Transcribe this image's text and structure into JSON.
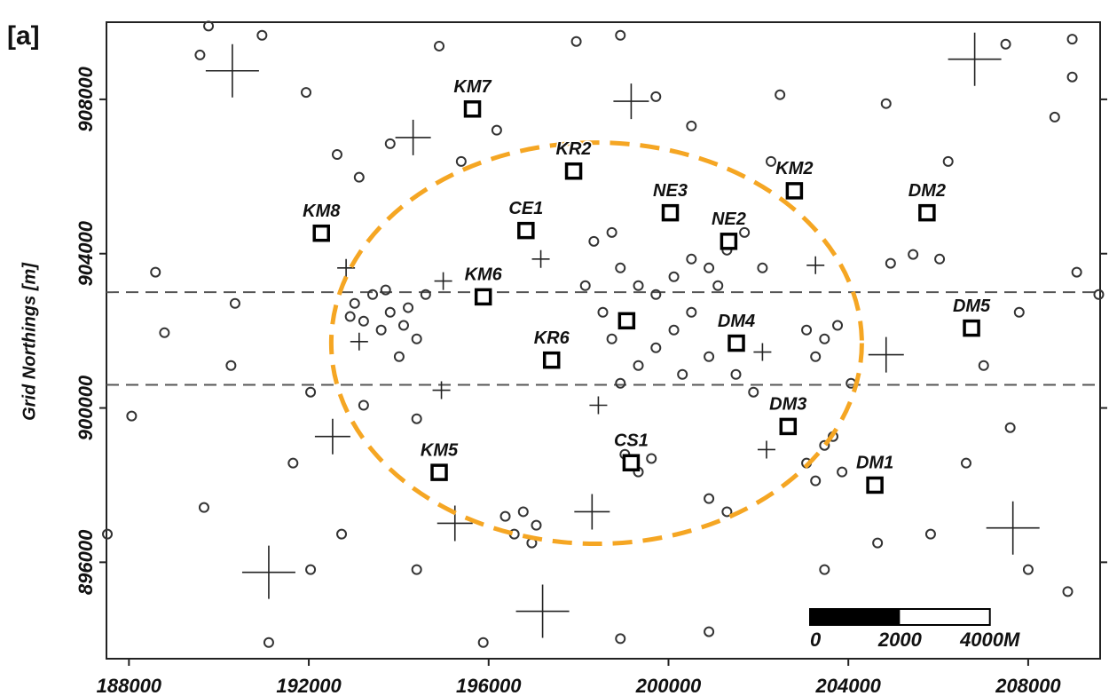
{
  "chart_data": {
    "type": "scatter",
    "panel_label": "[a]",
    "ylabel": "Grid Northings [m]",
    "xlim": [
      187500,
      209600
    ],
    "ylim": [
      893500,
      910000
    ],
    "xticks": [
      188000,
      192000,
      196000,
      200000,
      204000,
      208000
    ],
    "yticks": [
      896000,
      900000,
      904000,
      908000
    ],
    "hlines": [
      903000,
      900600
    ],
    "circle": {
      "cx": 198400,
      "cy": 901680,
      "rx": 5900,
      "ry": 5200,
      "color": "#f5a623"
    },
    "events": {
      "color": "#333333",
      "x": [
        193020,
        193420,
        193810,
        194210,
        193610,
        193220,
        194400,
        194010,
        192920,
        194600,
        193710,
        194110,
        198340,
        198740,
        198930,
        199330,
        199720,
        200120,
        200510,
        200900,
        201300,
        201100,
        200510,
        200120,
        199720,
        200900,
        201500,
        201890,
        199330,
        198930,
        198540,
        198150,
        198740,
        200310,
        201690,
        202090,
        203070,
        203470,
        203270,
        203760,
        203070,
        203470,
        203860,
        203270,
        203660,
        196370,
        196770,
        197060,
        196570,
        196960,
        199030,
        199330,
        199620,
        200900,
        201300,
        189770,
        190960,
        189580,
        191940,
        193810,
        193120,
        192630,
        194900,
        197950,
        198930,
        199720,
        202480,
        204840,
        207500,
        208980,
        208980,
        208590,
        188590,
        188790,
        190360,
        188060,
        187520,
        189670,
        191110,
        192040,
        192730,
        193220,
        194400,
        194400,
        195880,
        198930,
        200900,
        203470,
        204650,
        205830,
        206620,
        207010,
        207600,
        207800,
        209080,
        209570,
        208000,
        208880,
        205440,
        206030,
        204940,
        202280,
        200510,
        196180,
        195390,
        192040,
        191650,
        190270,
        206220,
        204060
      ],
      "y": [
        902710,
        902940,
        902480,
        902600,
        902020,
        902250,
        901790,
        901330,
        902370,
        902940,
        903060,
        902140,
        904320,
        904550,
        903630,
        903170,
        902940,
        903400,
        903860,
        903630,
        904090,
        903170,
        902480,
        902020,
        901560,
        901330,
        900870,
        900410,
        901100,
        900640,
        902480,
        903170,
        901790,
        900870,
        904550,
        903630,
        902020,
        901790,
        901330,
        902140,
        898570,
        899030,
        898340,
        898110,
        899260,
        897190,
        897310,
        896960,
        896730,
        896500,
        898800,
        898340,
        898690,
        897650,
        897310,
        909900,
        909660,
        909150,
        908180,
        906850,
        905980,
        906570,
        909380,
        909500,
        909660,
        908070,
        908120,
        907890,
        909430,
        909560,
        908580,
        907540,
        903520,
        901950,
        902710,
        899790,
        896730,
        897420,
        893920,
        895810,
        896730,
        900070,
        899720,
        895810,
        893920,
        894020,
        894200,
        895810,
        896500,
        896730,
        898570,
        901100,
        899490,
        902480,
        903520,
        902940,
        895810,
        895240,
        903980,
        903860,
        903750,
        906390,
        907310,
        907200,
        906390,
        900410,
        898570,
        901100,
        906390,
        900640
      ]
    },
    "crosses": {
      "color": "#222222",
      "x": [
        190300,
        199170,
        194320,
        206810,
        197160,
        192830,
        194990,
        203270,
        204840,
        193120,
        194950,
        198440,
        192530,
        202180,
        195250,
        198300,
        207660,
        191110,
        197200,
        202090
      ],
      "y": [
        908740,
        907950,
        907010,
        909040,
        903860,
        903630,
        903290,
        903700,
        901380,
        901720,
        900460,
        900070,
        899260,
        898920,
        897010,
        897310,
        896890,
        895740,
        894730,
        901450
      ],
      "sizes": [
        3,
        2,
        2,
        3,
        1,
        1,
        1,
        1,
        2,
        1,
        1,
        1,
        2,
        1,
        2,
        2,
        3,
        3,
        3,
        1
      ]
    },
    "stations": {
      "names": [
        "KM7",
        "KR2",
        "KM2",
        "NE3",
        "DM2",
        "KM8",
        "CE1",
        "KM6",
        "DM5",
        "KR6",
        "DM4",
        "DM3",
        "KM5",
        "DM1",
        "NE2",
        "CS1",
        null
      ],
      "x": [
        195640,
        197890,
        202800,
        200040,
        205750,
        192280,
        196830,
        195880,
        206740,
        197400,
        201510,
        202660,
        194900,
        204590,
        201340,
        199170,
        199070
      ],
      "y": [
        907750,
        906140,
        905630,
        905060,
        905060,
        904530,
        904600,
        902880,
        902070,
        901240,
        901680,
        899520,
        898330,
        898000,
        904320,
        898580,
        902260
      ]
    },
    "scale_bar": {
      "ticks": [
        0,
        2000,
        {
          "value": 4000,
          "label": "4000M"
        }
      ]
    }
  }
}
